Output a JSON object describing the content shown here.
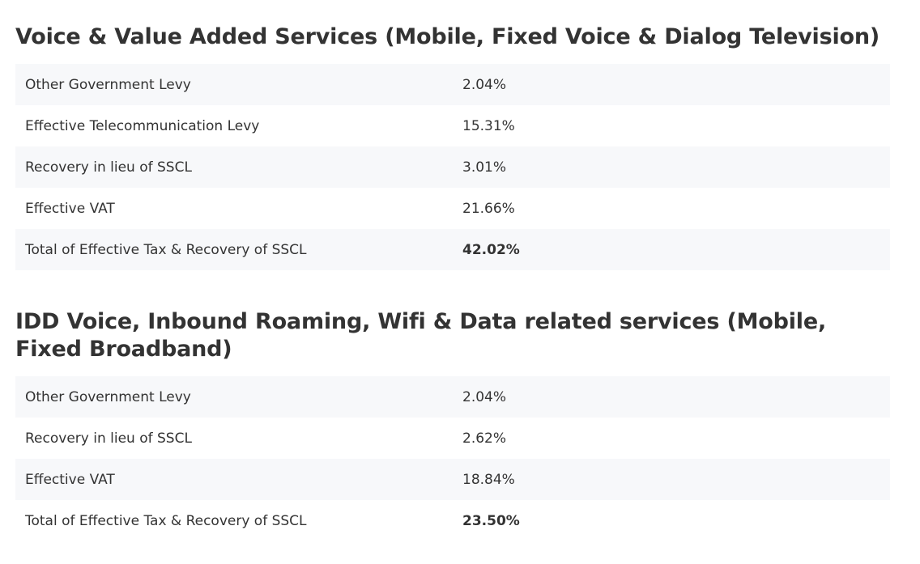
{
  "sections": [
    {
      "title": "Voice & Value Added Services (Mobile, Fixed Voice & Dialog Television)",
      "rows": [
        {
          "label": "Other Government Levy",
          "value": "2.04%"
        },
        {
          "label": "Effective Telecommunication Levy",
          "value": "15.31%"
        },
        {
          "label": "Recovery in lieu of SSCL",
          "value": "3.01%"
        },
        {
          "label": "Effective VAT",
          "value": "21.66%"
        },
        {
          "label": "Total of Effective Tax & Recovery of SSCL",
          "value": "42.02%"
        }
      ]
    },
    {
      "title": "IDD Voice, Inbound Roaming, Wifi & Data related services (Mobile, Fixed Broadband)",
      "rows": [
        {
          "label": "Other Government Levy",
          "value": "2.04%"
        },
        {
          "label": "Recovery in lieu of SSCL",
          "value": "2.62%"
        },
        {
          "label": "Effective VAT",
          "value": "18.84%"
        },
        {
          "label": "Total of Effective Tax & Recovery of SSCL",
          "value": "23.50%"
        }
      ]
    }
  ]
}
